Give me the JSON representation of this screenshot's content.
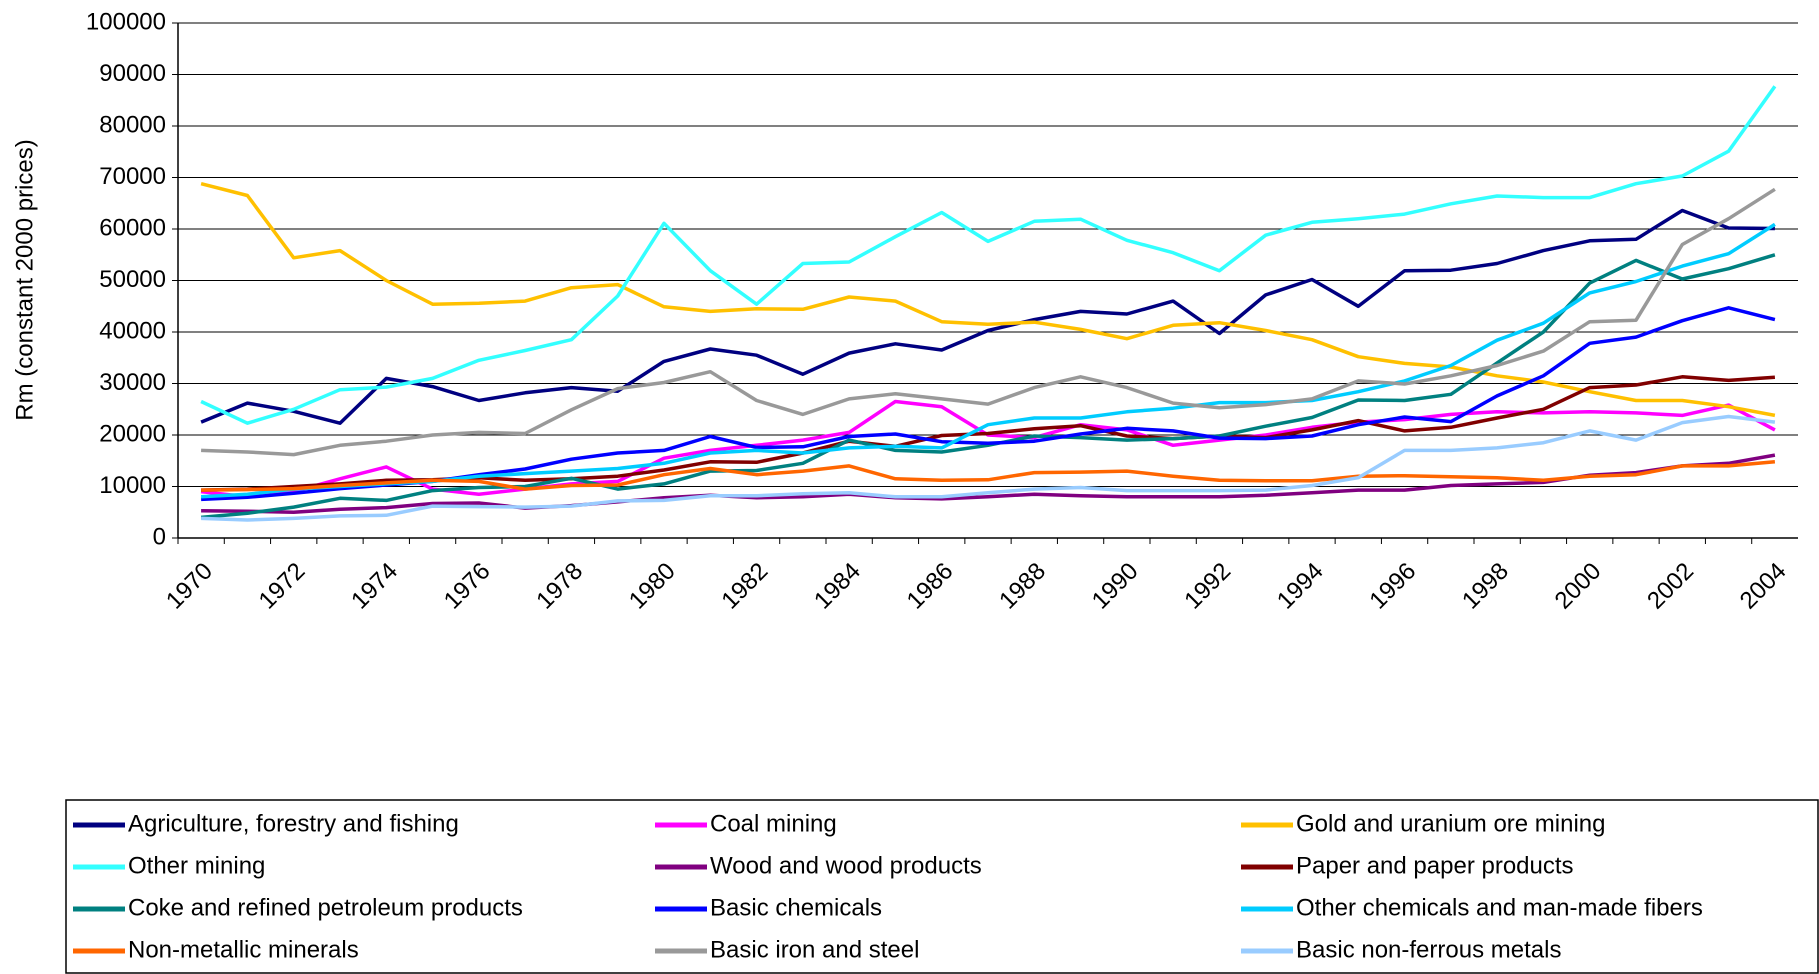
{
  "chart_data": {
    "type": "line",
    "y_label": "Rm (constant 2000 prices)",
    "categories": [
      "1970",
      null,
      "1972",
      null,
      "1974",
      null,
      "1976",
      null,
      "1978",
      null,
      "1980",
      null,
      "1982",
      null,
      "1984",
      null,
      "1986",
      null,
      "1988",
      null,
      "1990",
      null,
      "1992",
      null,
      "1994",
      null,
      "1996",
      null,
      "1998",
      null,
      "2000",
      null,
      "2002",
      null,
      "2004"
    ],
    "ylim": [
      0,
      100000
    ],
    "yticks": [
      0,
      10000,
      20000,
      30000,
      40000,
      50000,
      60000,
      70000,
      80000,
      90000,
      100000
    ],
    "grid": true,
    "legend": "bottom",
    "series": [
      {
        "name": "Agriculture, forestry and fishing",
        "color": "#000080",
        "values": [
          22500,
          26200,
          24600,
          22300,
          31000,
          29400,
          26700,
          28200,
          29200,
          28500,
          34300,
          36700,
          35500,
          31800,
          35900,
          37700,
          36500,
          40300,
          42400,
          44000,
          43500,
          46000,
          39700,
          47200,
          50200,
          45000,
          51900,
          52000,
          53300,
          55800,
          57700,
          58000,
          63600,
          60200,
          60100
        ]
      },
      {
        "name": "Coal mining",
        "color": "#ff00ff",
        "values": [
          9000,
          8000,
          9000,
          11500,
          13800,
          9500,
          8500,
          9500,
          10500,
          11000,
          15500,
          17000,
          18000,
          19000,
          20500,
          26500,
          25500,
          20000,
          19500,
          22000,
          21000,
          18000,
          19000,
          20000,
          21500,
          22500,
          23000,
          24000,
          24500,
          24300,
          24500,
          24300,
          23800,
          25800,
          21000
        ]
      },
      {
        "name": "Gold and uranium ore mining",
        "color": "#ffc000",
        "values": [
          68800,
          66500,
          54400,
          55800,
          50000,
          45400,
          45600,
          46000,
          48600,
          49200,
          44900,
          44000,
          44500,
          44400,
          46800,
          46000,
          42000,
          41500,
          41900,
          40500,
          38700,
          41300,
          41800,
          40300,
          38500,
          35200,
          33900,
          33200,
          31500,
          30300,
          28400,
          26700,
          26700,
          25500,
          23800
        ]
      },
      {
        "name": "Other mining",
        "color": "#33ffff",
        "values": [
          26500,
          22300,
          25000,
          28800,
          29300,
          31000,
          34500,
          36400,
          38500,
          47000,
          61100,
          51900,
          45400,
          53300,
          53600,
          58500,
          63200,
          57600,
          61500,
          61900,
          57800,
          55400,
          51900,
          58800,
          61300,
          62000,
          62900,
          64900,
          66400,
          66100,
          66100,
          68800,
          70300,
          75100,
          87700
        ]
      },
      {
        "name": "Wood and wood products",
        "color": "#800080",
        "values": [
          5300,
          5200,
          5000,
          5600,
          5900,
          6700,
          6800,
          5800,
          6300,
          7000,
          7800,
          8300,
          7800,
          8000,
          8500,
          7800,
          7600,
          8000,
          8500,
          8200,
          8000,
          8000,
          8000,
          8300,
          8800,
          9300,
          9300,
          10200,
          10500,
          10800,
          12200,
          12700,
          14000,
          14500,
          16100
        ]
      },
      {
        "name": "Paper and paper products",
        "color": "#800000",
        "values": [
          9300,
          9500,
          10000,
          10500,
          11200,
          11300,
          11700,
          11200,
          11500,
          12000,
          13200,
          14800,
          14700,
          16500,
          18800,
          17800,
          19900,
          20300,
          21200,
          21800,
          19800,
          19300,
          19800,
          19500,
          21000,
          22800,
          20800,
          21500,
          23300,
          25000,
          29200,
          29700,
          31300,
          30600,
          31200
        ]
      },
      {
        "name": "Coke and refined petroleum products",
        "color": "#008080",
        "values": [
          4000,
          4800,
          6000,
          7700,
          7300,
          9200,
          9800,
          10000,
          11600,
          9500,
          10500,
          13000,
          13100,
          14500,
          19000,
          17000,
          16700,
          18000,
          19800,
          19500,
          19000,
          19300,
          19800,
          21700,
          23400,
          26800,
          26700,
          27900,
          34000,
          40000,
          49500,
          53900,
          50300,
          52300,
          55000
        ]
      },
      {
        "name": "Basic chemicals",
        "color": "#0000ff",
        "values": [
          7500,
          7900,
          8700,
          9600,
          10300,
          11000,
          12300,
          13400,
          15300,
          16500,
          17000,
          19700,
          17600,
          17700,
          19700,
          20200,
          18700,
          18400,
          18800,
          20200,
          21300,
          20800,
          19400,
          19300,
          19800,
          22000,
          23500,
          22600,
          27600,
          31500,
          37800,
          39000,
          42200,
          44700,
          42400
        ]
      },
      {
        "name": "Other chemicals and man-made fibers",
        "color": "#00ccff",
        "values": [
          8000,
          8500,
          9500,
          10000,
          10500,
          11000,
          12000,
          12500,
          13000,
          13500,
          14500,
          16500,
          17000,
          16500,
          17500,
          17800,
          17500,
          22000,
          23300,
          23300,
          24500,
          25200,
          26300,
          26300,
          26700,
          28400,
          30500,
          33500,
          38400,
          41700,
          47600,
          49800,
          52800,
          55200,
          60900
        ]
      },
      {
        "name": "Non-metallic minerals",
        "color": "#ff6600",
        "values": [
          9300,
          9400,
          9600,
          10200,
          10700,
          11200,
          11000,
          9500,
          10200,
          10300,
          12300,
          13500,
          12300,
          13000,
          14000,
          11500,
          11200,
          11300,
          12700,
          12800,
          13000,
          12000,
          11200,
          11100,
          11100,
          12000,
          12100,
          11900,
          11700,
          11200,
          12000,
          12300,
          14000,
          14000,
          14800
        ]
      },
      {
        "name": "Basic iron and steel",
        "color": "#999999",
        "values": [
          17000,
          16700,
          16200,
          18000,
          18800,
          20000,
          20500,
          20300,
          24900,
          29000,
          30200,
          32300,
          26700,
          24000,
          27000,
          28000,
          27000,
          26000,
          29200,
          31300,
          29200,
          26200,
          25300,
          25900,
          27000,
          30500,
          29900,
          31500,
          33500,
          36300,
          42000,
          42300,
          57000,
          62000,
          67700
        ]
      },
      {
        "name": "Basic non-ferrous metals",
        "color": "#99ccff",
        "values": [
          3800,
          3500,
          3800,
          4300,
          4400,
          6200,
          6100,
          6000,
          6200,
          7200,
          7300,
          8200,
          8200,
          8600,
          8800,
          8000,
          8000,
          8800,
          9500,
          9800,
          9200,
          9200,
          9200,
          9300,
          10200,
          11700,
          17000,
          17000,
          17500,
          18500,
          20800,
          19000,
          22400,
          23600,
          22500
        ]
      }
    ]
  }
}
